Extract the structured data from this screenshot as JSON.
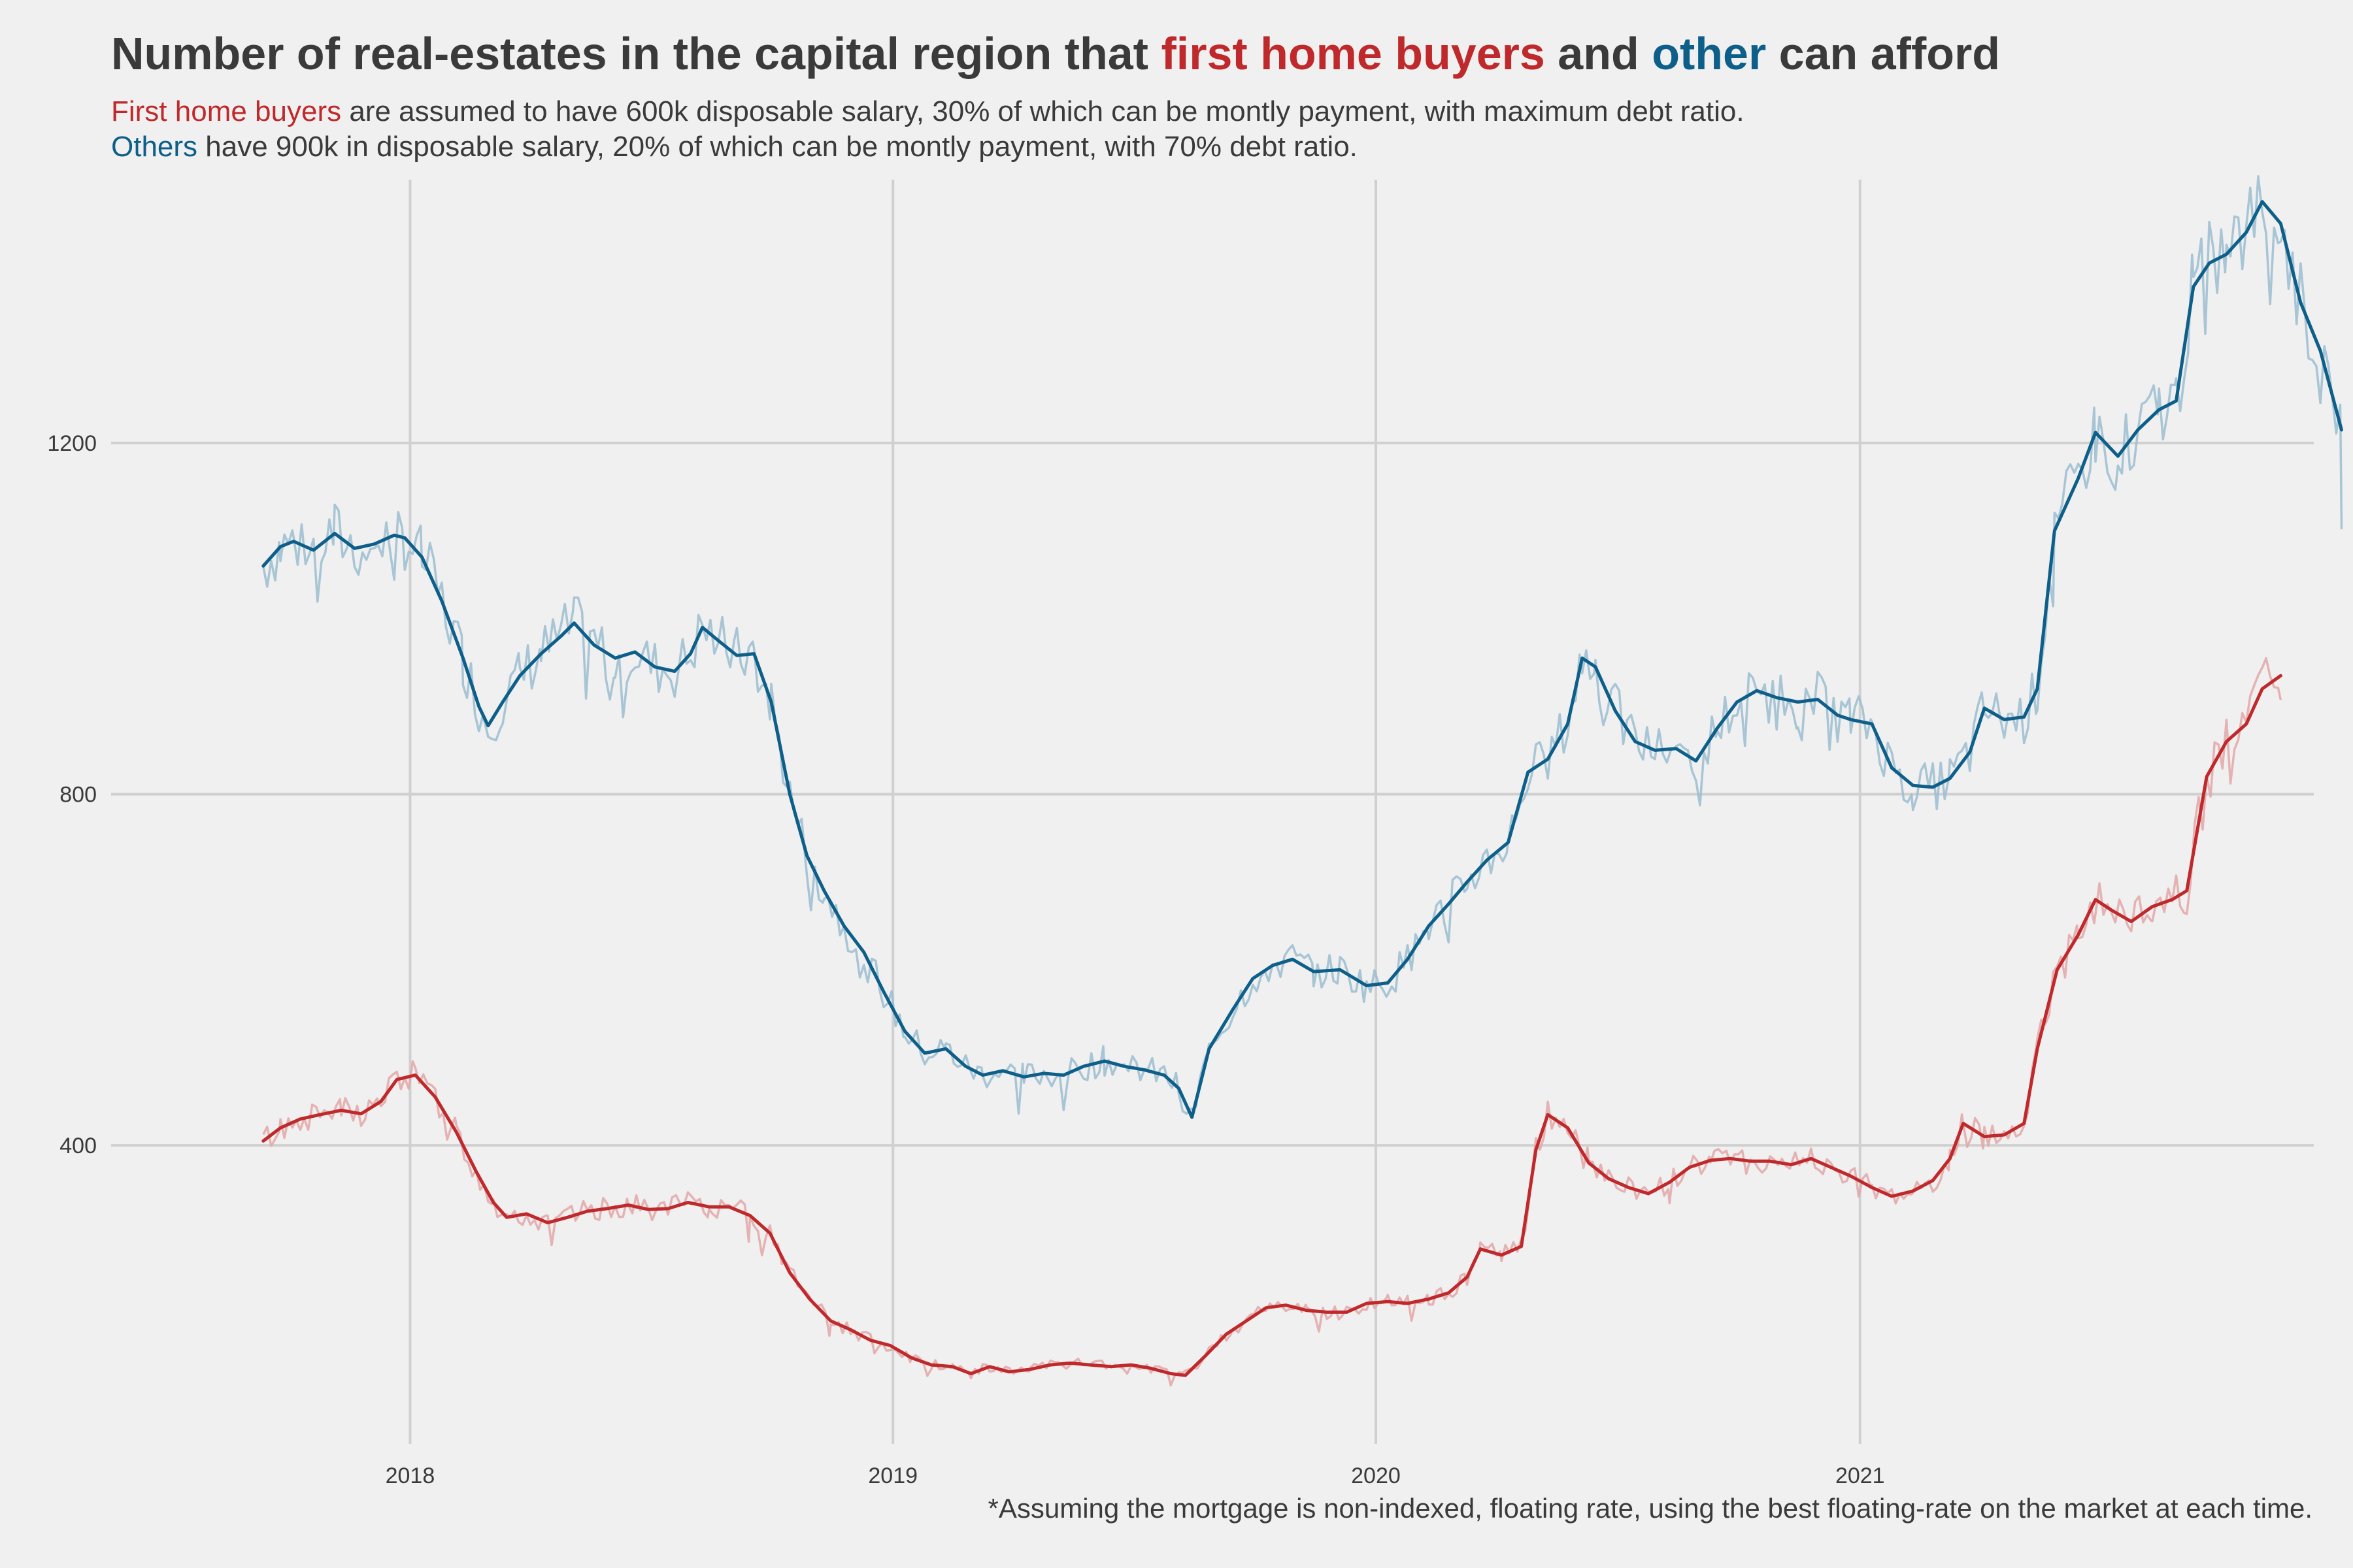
{
  "title": {
    "part1": "Number of real-estates in the capital region that ",
    "highlight1": "first home buyers",
    "part2": " and ",
    "highlight2": "other",
    "part3": " can afford"
  },
  "subtitle": {
    "line1_highlight": "First home buyers",
    "line1_rest": " are assumed to have 600k disposable salary, 30% of which can be montly payment, with maximum debt ratio.",
    "line2_highlight": "Others",
    "line2_rest": " have 900k in disposable salary, 20% of which can be montly payment, with 70% debt ratio."
  },
  "footnote": "*Assuming the mortgage is non-indexed, floating rate, using the best floating-rate on the market at each time.",
  "colors": {
    "background": "#f0f0f0",
    "grid": "#d0d0d0",
    "first_home_buyers": "#c0292b",
    "first_home_buyers_raw": "#e3a7a8",
    "others": "#0d5f8a",
    "others_raw": "#9bbdd0",
    "text": "#3a3a3a"
  },
  "chart_data": {
    "type": "line",
    "title": "Number of real-estates in the capital region that first home buyers and other can afford",
    "xlabel": "",
    "ylabel": "",
    "x_type": "date",
    "xlim": [
      "2017-05-20",
      "2021-12-10"
    ],
    "ylim": [
      60,
      1500
    ],
    "xticks": [
      {
        "date": "2018-01-01",
        "label": "2018"
      },
      {
        "date": "2019-01-01",
        "label": "2019"
      },
      {
        "date": "2020-01-01",
        "label": "2020"
      },
      {
        "date": "2021-01-01",
        "label": "2021"
      }
    ],
    "yticks": [
      400,
      800,
      1200
    ],
    "grid": true,
    "legend": "none (series named in title colors)",
    "series": [
      {
        "id": "others",
        "style": "smoothed line with faint raw daily line behind",
        "points": [
          [
            "2017-09-12",
            1060
          ],
          [
            "2017-09-25",
            1082
          ],
          [
            "2017-10-05",
            1088
          ],
          [
            "2017-10-20",
            1078
          ],
          [
            "2017-11-05",
            1097
          ],
          [
            "2017-11-20",
            1080
          ],
          [
            "2017-12-05",
            1085
          ],
          [
            "2017-12-20",
            1095
          ],
          [
            "2017-12-28",
            1092
          ],
          [
            "2018-01-10",
            1070
          ],
          [
            "2018-01-25",
            1020
          ],
          [
            "2018-02-10",
            955
          ],
          [
            "2018-02-22",
            900
          ],
          [
            "2018-03-01",
            878
          ],
          [
            "2018-03-12",
            905
          ],
          [
            "2018-03-25",
            935
          ],
          [
            "2018-04-10",
            960
          ],
          [
            "2018-04-25",
            980
          ],
          [
            "2018-05-05",
            995
          ],
          [
            "2018-05-20",
            970
          ],
          [
            "2018-06-05",
            955
          ],
          [
            "2018-06-20",
            962
          ],
          [
            "2018-07-05",
            945
          ],
          [
            "2018-07-20",
            940
          ],
          [
            "2018-08-01",
            960
          ],
          [
            "2018-08-10",
            990
          ],
          [
            "2018-08-22",
            975
          ],
          [
            "2018-09-05",
            958
          ],
          [
            "2018-09-18",
            960
          ],
          [
            "2018-10-01",
            905
          ],
          [
            "2018-10-15",
            800
          ],
          [
            "2018-10-28",
            730
          ],
          [
            "2018-11-10",
            690
          ],
          [
            "2018-11-25",
            650
          ],
          [
            "2018-12-10",
            620
          ],
          [
            "2018-12-25",
            575
          ],
          [
            "2019-01-10",
            530
          ],
          [
            "2019-01-25",
            505
          ],
          [
            "2019-02-10",
            510
          ],
          [
            "2019-02-25",
            490
          ],
          [
            "2019-03-10",
            480
          ],
          [
            "2019-03-25",
            485
          ],
          [
            "2019-04-10",
            478
          ],
          [
            "2019-04-25",
            482
          ],
          [
            "2019-05-10",
            480
          ],
          [
            "2019-05-25",
            490
          ],
          [
            "2019-06-10",
            496
          ],
          [
            "2019-06-25",
            490
          ],
          [
            "2019-07-10",
            486
          ],
          [
            "2019-07-25",
            480
          ],
          [
            "2019-08-05",
            465
          ],
          [
            "2019-08-15",
            432
          ],
          [
            "2019-08-28",
            510
          ],
          [
            "2019-09-15",
            555
          ],
          [
            "2019-09-30",
            590
          ],
          [
            "2019-10-15",
            605
          ],
          [
            "2019-10-30",
            612
          ],
          [
            "2019-11-15",
            598
          ],
          [
            "2019-12-05",
            600
          ],
          [
            "2019-12-25",
            582
          ],
          [
            "2020-01-10",
            585
          ],
          [
            "2020-01-25",
            612
          ],
          [
            "2020-02-10",
            650
          ],
          [
            "2020-02-25",
            675
          ],
          [
            "2020-03-10",
            700
          ],
          [
            "2020-03-25",
            725
          ],
          [
            "2020-04-10",
            745
          ],
          [
            "2020-04-25",
            825
          ],
          [
            "2020-05-10",
            840
          ],
          [
            "2020-05-25",
            880
          ],
          [
            "2020-06-05",
            955
          ],
          [
            "2020-06-15",
            945
          ],
          [
            "2020-06-30",
            895
          ],
          [
            "2020-07-15",
            860
          ],
          [
            "2020-07-30",
            850
          ],
          [
            "2020-08-15",
            852
          ],
          [
            "2020-08-30",
            838
          ],
          [
            "2020-09-15",
            875
          ],
          [
            "2020-09-30",
            905
          ],
          [
            "2020-10-15",
            918
          ],
          [
            "2020-10-30",
            910
          ],
          [
            "2020-11-15",
            905
          ],
          [
            "2020-11-30",
            908
          ],
          [
            "2020-12-15",
            890
          ],
          [
            "2020-12-25",
            885
          ],
          [
            "2021-01-10",
            880
          ],
          [
            "2021-01-25",
            830
          ],
          [
            "2021-02-10",
            810
          ],
          [
            "2021-02-25",
            808
          ],
          [
            "2021-03-10",
            818
          ],
          [
            "2021-03-25",
            848
          ],
          [
            "2021-04-05",
            898
          ],
          [
            "2021-04-20",
            885
          ],
          [
            "2021-05-05",
            888
          ],
          [
            "2021-05-15",
            920
          ],
          [
            "2021-05-28",
            1100
          ],
          [
            "2021-06-15",
            1160
          ],
          [
            "2021-06-28",
            1212
          ],
          [
            "2021-07-15",
            1185
          ],
          [
            "2021-07-30",
            1215
          ],
          [
            "2021-08-15",
            1238
          ],
          [
            "2021-08-28",
            1248
          ],
          [
            "2021-09-10",
            1378
          ],
          [
            "2021-09-22",
            1405
          ],
          [
            "2021-10-05",
            1415
          ],
          [
            "2021-10-20",
            1440
          ],
          [
            "2021-11-01",
            1475
          ],
          [
            "2021-11-15",
            1450
          ],
          [
            "2021-11-30",
            1360
          ],
          [
            "2021-12-15",
            1305
          ],
          [
            "2021-12-31",
            1215
          ]
        ]
      },
      {
        "id": "first_home_buyers",
        "style": "smoothed line with faint raw daily line behind",
        "points": [
          [
            "2017-09-12",
            405
          ],
          [
            "2017-09-25",
            420
          ],
          [
            "2017-10-10",
            430
          ],
          [
            "2017-10-25",
            435
          ],
          [
            "2017-11-10",
            440
          ],
          [
            "2017-11-25",
            436
          ],
          [
            "2017-12-10",
            450
          ],
          [
            "2017-12-22",
            475
          ],
          [
            "2018-01-05",
            480
          ],
          [
            "2018-01-20",
            455
          ],
          [
            "2018-02-05",
            415
          ],
          [
            "2018-02-20",
            370
          ],
          [
            "2018-03-05",
            335
          ],
          [
            "2018-03-15",
            318
          ],
          [
            "2018-03-30",
            322
          ],
          [
            "2018-04-15",
            312
          ],
          [
            "2018-04-30",
            318
          ],
          [
            "2018-05-15",
            325
          ],
          [
            "2018-05-30",
            328
          ],
          [
            "2018-06-15",
            332
          ],
          [
            "2018-06-30",
            327
          ],
          [
            "2018-07-15",
            328
          ],
          [
            "2018-07-30",
            335
          ],
          [
            "2018-08-15",
            330
          ],
          [
            "2018-08-30",
            330
          ],
          [
            "2018-09-15",
            320
          ],
          [
            "2018-09-30",
            300
          ],
          [
            "2018-10-15",
            255
          ],
          [
            "2018-10-30",
            225
          ],
          [
            "2018-11-15",
            200
          ],
          [
            "2018-11-30",
            190
          ],
          [
            "2018-12-15",
            178
          ],
          [
            "2018-12-30",
            172
          ],
          [
            "2019-01-15",
            158
          ],
          [
            "2019-01-30",
            150
          ],
          [
            "2019-02-15",
            148
          ],
          [
            "2019-03-01",
            140
          ],
          [
            "2019-03-15",
            148
          ],
          [
            "2019-03-30",
            142
          ],
          [
            "2019-04-15",
            145
          ],
          [
            "2019-04-30",
            150
          ],
          [
            "2019-05-15",
            152
          ],
          [
            "2019-05-30",
            150
          ],
          [
            "2019-06-15",
            148
          ],
          [
            "2019-06-30",
            150
          ],
          [
            "2019-07-15",
            146
          ],
          [
            "2019-07-30",
            140
          ],
          [
            "2019-08-10",
            138
          ],
          [
            "2019-08-25",
            160
          ],
          [
            "2019-09-10",
            185
          ],
          [
            "2019-09-25",
            200
          ],
          [
            "2019-10-10",
            215
          ],
          [
            "2019-10-25",
            218
          ],
          [
            "2019-11-10",
            212
          ],
          [
            "2019-11-25",
            210
          ],
          [
            "2019-12-10",
            210
          ],
          [
            "2019-12-25",
            220
          ],
          [
            "2020-01-10",
            222
          ],
          [
            "2020-01-25",
            220
          ],
          [
            "2020-02-10",
            225
          ],
          [
            "2020-02-25",
            232
          ],
          [
            "2020-03-10",
            250
          ],
          [
            "2020-03-20",
            282
          ],
          [
            "2020-04-05",
            275
          ],
          [
            "2020-04-20",
            285
          ],
          [
            "2020-05-01",
            395
          ],
          [
            "2020-05-10",
            435
          ],
          [
            "2020-05-25",
            420
          ],
          [
            "2020-06-10",
            380
          ],
          [
            "2020-06-25",
            362
          ],
          [
            "2020-07-10",
            352
          ],
          [
            "2020-07-25",
            345
          ],
          [
            "2020-08-10",
            358
          ],
          [
            "2020-08-25",
            375
          ],
          [
            "2020-09-10",
            383
          ],
          [
            "2020-09-25",
            385
          ],
          [
            "2020-10-10",
            382
          ],
          [
            "2020-10-25",
            382
          ],
          [
            "2020-11-10",
            378
          ],
          [
            "2020-11-25",
            385
          ],
          [
            "2020-12-10",
            375
          ],
          [
            "2020-12-25",
            365
          ],
          [
            "2021-01-10",
            352
          ],
          [
            "2021-01-25",
            342
          ],
          [
            "2021-02-10",
            348
          ],
          [
            "2021-02-25",
            360
          ],
          [
            "2021-03-10",
            385
          ],
          [
            "2021-03-20",
            425
          ],
          [
            "2021-04-05",
            410
          ],
          [
            "2021-04-20",
            412
          ],
          [
            "2021-05-05",
            425
          ],
          [
            "2021-05-15",
            510
          ],
          [
            "2021-05-30",
            600
          ],
          [
            "2021-06-15",
            640
          ],
          [
            "2021-06-28",
            680
          ],
          [
            "2021-07-10",
            668
          ],
          [
            "2021-07-25",
            655
          ],
          [
            "2021-08-10",
            672
          ],
          [
            "2021-08-25",
            680
          ],
          [
            "2021-09-05",
            690
          ],
          [
            "2021-09-20",
            820
          ],
          [
            "2021-10-05",
            860
          ],
          [
            "2021-10-20",
            880
          ],
          [
            "2021-11-01",
            920
          ],
          [
            "2021-11-15",
            935
          ]
        ]
      }
    ]
  }
}
